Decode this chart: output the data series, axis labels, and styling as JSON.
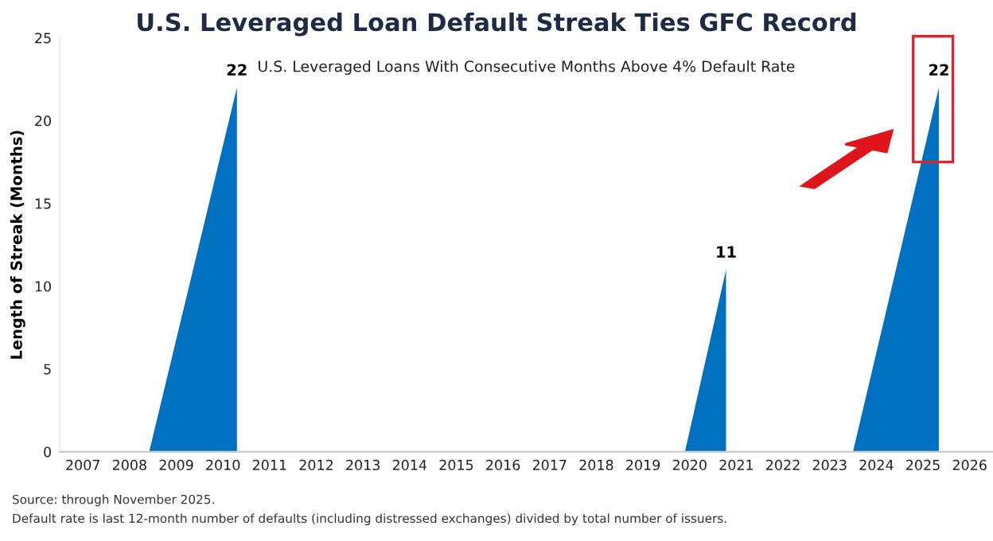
{
  "chart_data": {
    "type": "area",
    "title": "U.S. Leveraged Loan Default Streak Ties GFC Record",
    "subtitle": "U.S. Leveraged Loans With Consecutive Months Above 4% Default Rate",
    "ylabel": "Length of Streak (Months)",
    "x": [
      2008.92,
      2010.8,
      2010.8,
      2020.4,
      2021.28,
      2021.28,
      2024.0,
      2025.84,
      2025.84
    ],
    "series": [
      {
        "color": "#0070c0",
        "values": [
          0,
          22,
          0,
          0,
          11,
          0,
          0,
          22,
          0
        ]
      }
    ],
    "xlim": [
      2007,
      2027
    ],
    "xticks": [
      {
        "value": 2007.5,
        "label": "2007"
      },
      {
        "value": 2008.5,
        "label": "2008"
      },
      {
        "value": 2009.5,
        "label": "2009"
      },
      {
        "value": 2010.5,
        "label": "2010"
      },
      {
        "value": 2011.5,
        "label": "2011"
      },
      {
        "value": 2012.5,
        "label": "2012"
      },
      {
        "value": 2013.5,
        "label": "2013"
      },
      {
        "value": 2014.5,
        "label": "2014"
      },
      {
        "value": 2015.5,
        "label": "2015"
      },
      {
        "value": 2016.5,
        "label": "2016"
      },
      {
        "value": 2017.5,
        "label": "2017"
      },
      {
        "value": 2018.5,
        "label": "2018"
      },
      {
        "value": 2019.5,
        "label": "2019"
      },
      {
        "value": 2020.5,
        "label": "2020"
      },
      {
        "value": 2021.5,
        "label": "2021"
      },
      {
        "value": 2022.5,
        "label": "2022"
      },
      {
        "value": 2023.5,
        "label": "2023"
      },
      {
        "value": 2024.5,
        "label": "2024"
      },
      {
        "value": 2025.5,
        "label": "2025"
      },
      {
        "value": 2026.5,
        "label": "2026"
      }
    ],
    "ylim": [
      0,
      25
    ],
    "yticks": [
      0,
      5,
      10,
      15,
      20,
      25
    ],
    "grid": false,
    "legend": false,
    "annotations": [
      {
        "text": "22",
        "x": 2010.8,
        "y": 22
      },
      {
        "text": "11",
        "x": 2021.28,
        "y": 11
      },
      {
        "text": "22",
        "x": 2025.84,
        "y": 22
      },
      "Source: through November 2025.",
      "Default rate is last 12-month number of defaults (including distressed exchanges) divided by total number of issuers."
    ]
  }
}
